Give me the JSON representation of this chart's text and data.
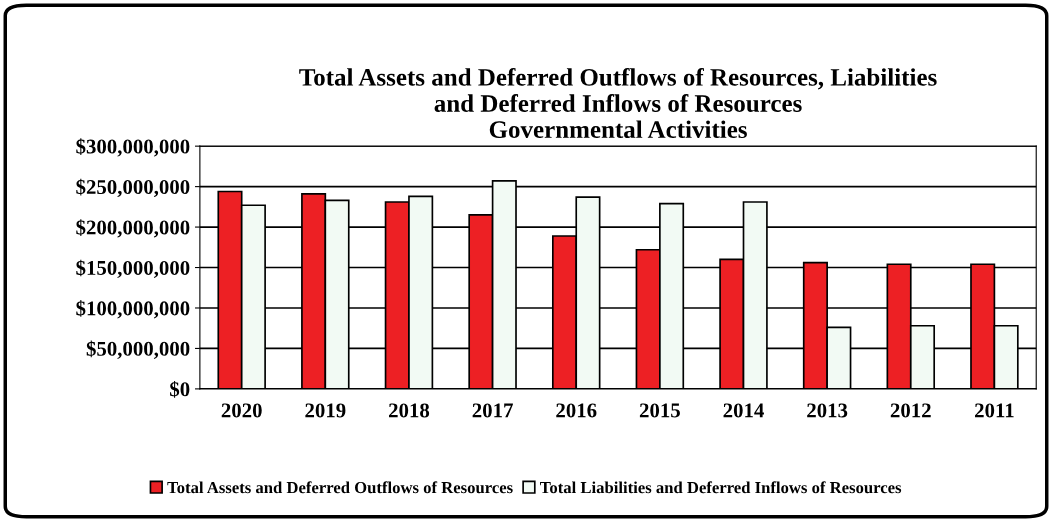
{
  "chart_data": {
    "type": "bar",
    "title": "Total Assets and Deferred Outflows of Resources, Liabilities\nand Deferred Inflows of Resources\nGovernmental Activities",
    "categories": [
      "2020",
      "2019",
      "2018",
      "2017",
      "2016",
      "2015",
      "2014",
      "2013",
      "2012",
      "2011"
    ],
    "series": [
      {
        "name": "Total Assets and Deferred Outflows of Resources",
        "color": "#ed2024",
        "values": [
          244000000,
          241000000,
          231000000,
          215000000,
          189000000,
          172000000,
          160000000,
          156000000,
          154000000,
          154000000
        ]
      },
      {
        "name": "Total Liabilities and Deferred Inflows of Resources",
        "color": "#f2faf4",
        "values": [
          227000000,
          233000000,
          238000000,
          257000000,
          237000000,
          229000000,
          231000000,
          76000000,
          78000000,
          78000000
        ]
      }
    ],
    "ylim": [
      0,
      300000000
    ],
    "yticks": [
      {
        "value": 0,
        "label": "$0"
      },
      {
        "value": 50000000,
        "label": "$50,000,000"
      },
      {
        "value": 100000000,
        "label": "$100,000,000"
      },
      {
        "value": 150000000,
        "label": "$150,000,000"
      },
      {
        "value": 200000000,
        "label": "$200,000,000"
      },
      {
        "value": 250000000,
        "label": "$250,000,000"
      },
      {
        "value": 300000000,
        "label": "$300,000,000"
      }
    ],
    "grid": "y",
    "legend": "bottom"
  }
}
